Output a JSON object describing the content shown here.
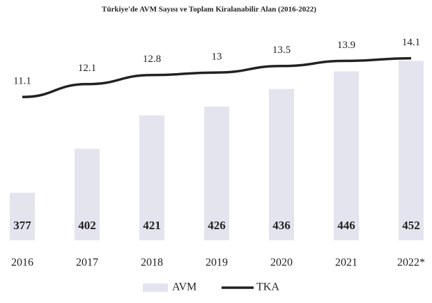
{
  "chart_data": {
    "type": "bar",
    "title": "Türkiye'de AVM Sayısı ve Toplam Kiralanabilir Alan (2016-2022)",
    "categories": [
      "2016",
      "2017",
      "2018",
      "2019",
      "2020",
      "2021",
      "2022*"
    ],
    "series": [
      {
        "name": "AVM",
        "type": "bar",
        "color": "#e4e4ee",
        "values": [
          377,
          402,
          421,
          426,
          436,
          446,
          452
        ]
      },
      {
        "name": "TKA",
        "type": "line",
        "axis": "y2",
        "color": "#222222",
        "values": [
          11.1,
          12.1,
          12.8,
          13,
          13.5,
          13.9,
          14.1
        ]
      }
    ],
    "ylim": [
      350,
      460
    ],
    "y2lim": [
      0,
      15
    ],
    "legend": "bottom"
  }
}
